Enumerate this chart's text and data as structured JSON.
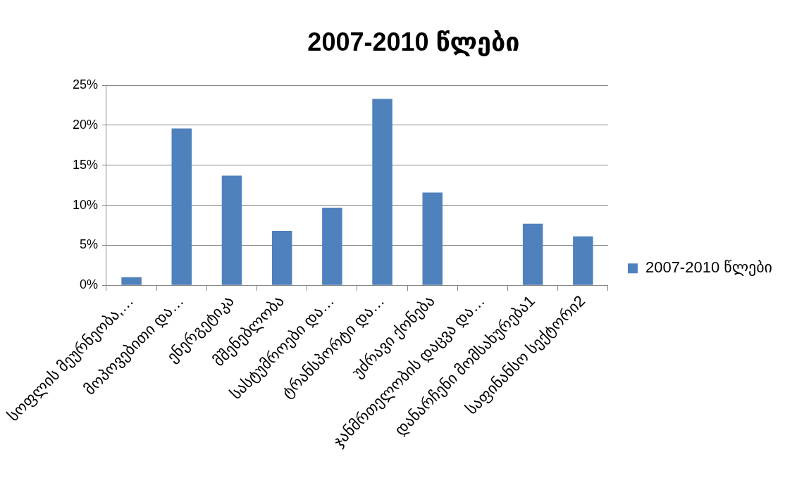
{
  "chart_data": {
    "type": "bar",
    "title": "2007-2010 წლები",
    "categories": [
      "სოფლის მეურნეობა,…",
      "მოპოვებითი და…",
      "ენერგეტიკა",
      "მშენებლობა",
      "სასტუმროები და…",
      "ტრანსპორტი და…",
      "უძრავი ქონება",
      "ჯანმრთელობის დაცვა და…",
      "დანარჩენი მომსახურება1",
      "საფინანსო სექტორი2"
    ],
    "series": [
      {
        "name": "2007-2010 წლები",
        "color": "#4f81bd",
        "values": [
          1.0,
          19.6,
          13.7,
          6.8,
          9.7,
          23.3,
          11.6,
          0,
          7.7,
          6.1
        ]
      }
    ],
    "ylim": [
      0,
      25
    ],
    "yticks": [
      {
        "value": 0,
        "label": "0%"
      },
      {
        "value": 5,
        "label": "5%"
      },
      {
        "value": 10,
        "label": "10%"
      },
      {
        "value": 15,
        "label": "15%"
      },
      {
        "value": 20,
        "label": "20%"
      },
      {
        "value": 25,
        "label": "25%"
      }
    ],
    "grid": "y",
    "legend": "right"
  }
}
